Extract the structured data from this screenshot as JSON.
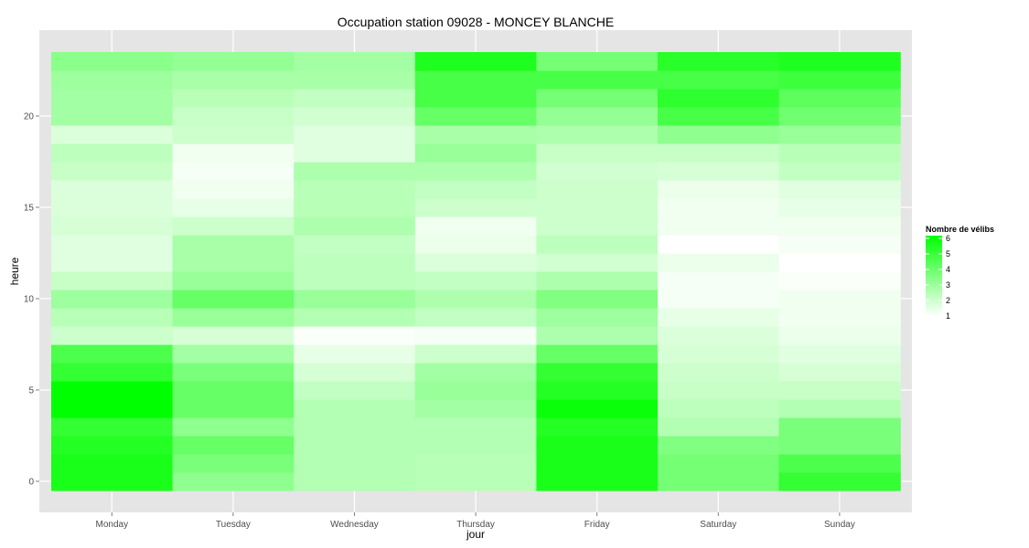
{
  "chart_data": {
    "type": "heatmap",
    "title": "Occupation station 09028 - MONCEY BLANCHE",
    "xlabel": "jour",
    "ylabel": "heure",
    "x": [
      "Monday",
      "Tuesday",
      "Wednesday",
      "Thursday",
      "Friday",
      "Saturday",
      "Sunday"
    ],
    "y": [
      0,
      1,
      2,
      3,
      4,
      5,
      6,
      7,
      8,
      9,
      10,
      11,
      12,
      13,
      14,
      15,
      16,
      17,
      18,
      19,
      20,
      21,
      22,
      23
    ],
    "y_ticks": [
      0,
      5,
      10,
      15,
      20
    ],
    "ylim": [
      -0.5,
      23.5
    ],
    "values": [
      [
        5.5,
        3.2,
        2.5,
        2.4,
        5.5,
        3.7,
        5.0
      ],
      [
        5.5,
        3.6,
        2.5,
        2.4,
        5.5,
        3.7,
        4.5
      ],
      [
        5.3,
        4.0,
        2.5,
        2.5,
        5.5,
        3.5,
        3.6
      ],
      [
        5.0,
        3.2,
        2.5,
        2.5,
        5.3,
        2.5,
        3.6
      ],
      [
        6.0,
        4.0,
        2.5,
        2.8,
        5.8,
        2.3,
        2.5
      ],
      [
        6.0,
        4.0,
        2.2,
        3.0,
        5.3,
        2.1,
        2.1
      ],
      [
        5.0,
        3.6,
        1.8,
        2.8,
        5.0,
        2.0,
        1.8
      ],
      [
        4.5,
        2.8,
        1.5,
        2.0,
        4.0,
        1.8,
        1.6
      ],
      [
        2.0,
        1.8,
        1.1,
        1.2,
        2.6,
        1.7,
        1.4
      ],
      [
        2.4,
        3.0,
        2.5,
        2.2,
        2.9,
        1.5,
        1.3
      ],
      [
        2.9,
        4.0,
        3.0,
        2.6,
        3.5,
        1.2,
        1.3
      ],
      [
        2.1,
        3.0,
        2.3,
        2.2,
        2.6,
        1.2,
        1.1
      ],
      [
        1.6,
        2.7,
        2.3,
        1.7,
        1.9,
        1.4,
        1.0
      ],
      [
        1.6,
        2.7,
        2.2,
        1.4,
        2.3,
        1.0,
        1.2
      ],
      [
        1.8,
        2.0,
        2.6,
        1.3,
        2.0,
        1.3,
        1.3
      ],
      [
        1.7,
        1.5,
        2.4,
        2.0,
        2.0,
        1.3,
        1.5
      ],
      [
        1.7,
        1.3,
        2.4,
        2.2,
        2.0,
        1.4,
        1.6
      ],
      [
        2.1,
        1.2,
        2.6,
        2.6,
        1.9,
        1.8,
        2.2
      ],
      [
        2.3,
        1.3,
        1.6,
        3.0,
        2.1,
        2.1,
        2.4
      ],
      [
        1.7,
        2.0,
        1.6,
        2.7,
        2.6,
        3.2,
        3.0
      ],
      [
        2.8,
        2.1,
        1.9,
        4.0,
        3.1,
        4.6,
        3.8
      ],
      [
        2.8,
        2.4,
        2.2,
        4.6,
        3.7,
        5.1,
        4.2
      ],
      [
        2.9,
        2.7,
        2.7,
        4.6,
        4.6,
        4.6,
        4.8
      ],
      [
        3.3,
        3.1,
        2.8,
        5.4,
        3.7,
        5.2,
        5.4
      ]
    ],
    "value_range": [
      1,
      6
    ],
    "color_low": "#ffffff",
    "color_high": "#00ff00",
    "panel_background": "#e5e5e5",
    "grid": true,
    "legend": {
      "title": "Nombre de vélibs",
      "labels": [
        6,
        5,
        4,
        3,
        2,
        1
      ],
      "position": "right"
    }
  }
}
